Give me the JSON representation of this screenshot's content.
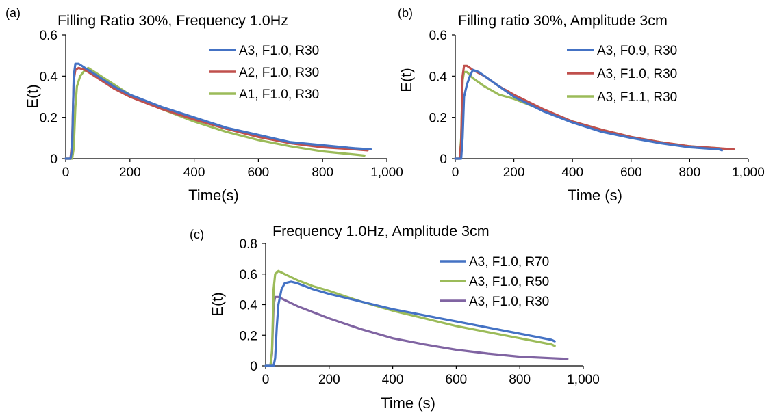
{
  "chart_data": [
    {
      "id": "a",
      "type": "line",
      "panel_label": "(a)",
      "title": "Filling Ratio 30%, Frequency 1.0Hz",
      "xlabel": "Time(s)",
      "ylabel": "E(t)",
      "xlim": [
        0,
        1000
      ],
      "ylim": [
        0,
        0.6
      ],
      "x_ticks": [
        0,
        200,
        400,
        600,
        800,
        1000
      ],
      "x_tick_labels": [
        "0",
        "200",
        "400",
        "600",
        "800",
        "1,000"
      ],
      "y_ticks": [
        0,
        0.2,
        0.4,
        0.6
      ],
      "y_tick_labels": [
        "0",
        "0.2",
        "0.4",
        "0.6"
      ],
      "grid": false,
      "legend_position": "top-right",
      "series": [
        {
          "name": "A3, F1.0, R30",
          "color": "#4472C4",
          "x": [
            0,
            15,
            20,
            25,
            30,
            40,
            60,
            100,
            150,
            200,
            300,
            400,
            500,
            600,
            700,
            800,
            900,
            950
          ],
          "y": [
            0,
            0,
            0.05,
            0.4,
            0.46,
            0.46,
            0.44,
            0.4,
            0.35,
            0.31,
            0.25,
            0.2,
            0.15,
            0.115,
            0.08,
            0.065,
            0.05,
            0.045
          ]
        },
        {
          "name": "A2, F1.0, R30",
          "color": "#C0504D",
          "x": [
            0,
            15,
            20,
            25,
            30,
            40,
            60,
            100,
            150,
            200,
            300,
            400,
            500,
            600,
            700,
            800,
            900,
            940
          ],
          "y": [
            0,
            0,
            0.08,
            0.38,
            0.43,
            0.44,
            0.43,
            0.39,
            0.34,
            0.3,
            0.24,
            0.19,
            0.145,
            0.105,
            0.075,
            0.055,
            0.045,
            0.04
          ]
        },
        {
          "name": "A1, F1.0, R30",
          "color": "#9BBB59",
          "x": [
            0,
            20,
            25,
            30,
            35,
            45,
            55,
            70,
            100,
            150,
            200,
            300,
            400,
            500,
            600,
            700,
            800,
            900,
            930
          ],
          "y": [
            0,
            0,
            0.05,
            0.25,
            0.35,
            0.4,
            0.42,
            0.44,
            0.41,
            0.36,
            0.31,
            0.24,
            0.18,
            0.13,
            0.09,
            0.06,
            0.035,
            0.02,
            0.015
          ]
        }
      ]
    },
    {
      "id": "b",
      "type": "line",
      "panel_label": "(b)",
      "title": "Filling ratio 30%, Amplitude 3cm",
      "xlabel": "Time (s)",
      "ylabel": "E(t)",
      "xlim": [
        0,
        1000
      ],
      "ylim": [
        0,
        0.6
      ],
      "x_ticks": [
        0,
        200,
        400,
        600,
        800,
        1000
      ],
      "x_tick_labels": [
        "0",
        "200",
        "400",
        "600",
        "800",
        "1,000"
      ],
      "y_ticks": [
        0,
        0.2,
        0.4,
        0.6
      ],
      "y_tick_labels": [
        "0",
        "0.2",
        "0.4",
        "0.6"
      ],
      "grid": false,
      "legend_position": "top-right",
      "series": [
        {
          "name": "A3, F0.9, R30",
          "color": "#4472C4",
          "x": [
            0,
            20,
            25,
            30,
            40,
            50,
            60,
            80,
            100,
            150,
            200,
            300,
            400,
            500,
            600,
            700,
            800,
            900,
            910
          ],
          "y": [
            0,
            0,
            0.1,
            0.3,
            0.36,
            0.4,
            0.43,
            0.42,
            0.4,
            0.35,
            0.3,
            0.23,
            0.175,
            0.13,
            0.1,
            0.075,
            0.055,
            0.045,
            0.04
          ]
        },
        {
          "name": "A3, F1.0, R30",
          "color": "#C0504D",
          "x": [
            0,
            15,
            20,
            25,
            30,
            40,
            60,
            100,
            150,
            200,
            300,
            400,
            500,
            600,
            700,
            800,
            900,
            950
          ],
          "y": [
            0,
            0,
            0.08,
            0.4,
            0.45,
            0.45,
            0.43,
            0.4,
            0.35,
            0.31,
            0.24,
            0.18,
            0.14,
            0.105,
            0.08,
            0.06,
            0.05,
            0.045
          ]
        },
        {
          "name": "A3, F1.1, R30",
          "color": "#9BBB59",
          "x": [
            0,
            15,
            20,
            25,
            30,
            40,
            60,
            100,
            150,
            200,
            300,
            400,
            500,
            600,
            700,
            800,
            900
          ],
          "y": [
            0,
            0,
            0.1,
            0.38,
            0.42,
            0.42,
            0.39,
            0.35,
            0.31,
            0.29,
            0.235,
            0.18,
            0.14,
            0.105,
            0.08,
            0.06,
            0.05
          ]
        }
      ]
    },
    {
      "id": "c",
      "type": "line",
      "panel_label": "(c)",
      "title": "Frequency 1.0Hz, Amplitude 3cm",
      "xlabel": "Time (s)",
      "ylabel": "E(t)",
      "xlim": [
        0,
        1000
      ],
      "ylim": [
        0,
        0.8
      ],
      "x_ticks": [
        0,
        200,
        400,
        600,
        800,
        1000
      ],
      "x_tick_labels": [
        "0",
        "200",
        "400",
        "600",
        "800",
        "1,000"
      ],
      "y_ticks": [
        0,
        0.2,
        0.4,
        0.6,
        0.8
      ],
      "y_tick_labels": [
        "0",
        "0.2",
        "0.4",
        "0.6",
        "0.8"
      ],
      "grid": false,
      "legend_position": "top-right",
      "series": [
        {
          "name": "A3, F1.0, R70",
          "color": "#4472C4",
          "x": [
            0,
            25,
            30,
            35,
            40,
            50,
            60,
            80,
            100,
            150,
            200,
            300,
            400,
            500,
            600,
            700,
            800,
            900,
            910
          ],
          "y": [
            0,
            0,
            0.05,
            0.25,
            0.4,
            0.5,
            0.54,
            0.55,
            0.54,
            0.5,
            0.47,
            0.42,
            0.37,
            0.33,
            0.29,
            0.25,
            0.21,
            0.17,
            0.16
          ]
        },
        {
          "name": "A3, F1.0, R50",
          "color": "#9BBB59",
          "x": [
            0,
            15,
            20,
            25,
            30,
            40,
            60,
            100,
            150,
            200,
            300,
            400,
            500,
            600,
            700,
            800,
            900,
            910
          ],
          "y": [
            0,
            0,
            0.1,
            0.5,
            0.6,
            0.62,
            0.6,
            0.56,
            0.52,
            0.49,
            0.42,
            0.36,
            0.31,
            0.26,
            0.22,
            0.18,
            0.14,
            0.13
          ]
        },
        {
          "name": "A3, F1.0, R30",
          "color": "#8064A2",
          "x": [
            0,
            15,
            20,
            25,
            30,
            40,
            60,
            100,
            150,
            200,
            300,
            400,
            500,
            600,
            700,
            800,
            900,
            950
          ],
          "y": [
            0,
            0,
            0.08,
            0.4,
            0.45,
            0.45,
            0.43,
            0.39,
            0.35,
            0.31,
            0.24,
            0.18,
            0.14,
            0.105,
            0.08,
            0.06,
            0.05,
            0.045
          ]
        }
      ]
    }
  ]
}
